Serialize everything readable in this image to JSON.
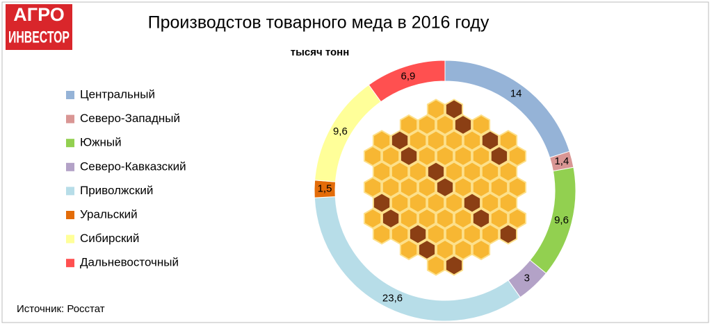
{
  "logo": {
    "line1": "АГРО",
    "line2": "ИНВЕСТОР"
  },
  "chart_data": {
    "type": "donut",
    "title": "Производстов товарного меда в 2016 году",
    "subtitle": "тысяч тонн",
    "categories": [
      "Центральный",
      "Северо-Западный",
      "Южный",
      "Северо-Кавказский",
      "Приволжский",
      "Уральский",
      "Сибирский",
      "Дальневосточный"
    ],
    "values": [
      14,
      1.4,
      9.6,
      3,
      23.6,
      1.5,
      9.6,
      6.9
    ],
    "value_labels": [
      "14",
      "1,4",
      "9,6",
      "3",
      "23,6",
      "1,5",
      "9,6",
      "6,9"
    ],
    "colors": [
      "#95b3d7",
      "#d99694",
      "#92d050",
      "#b3a2c7",
      "#b7dde8",
      "#e36c09",
      "#ffff99",
      "#ff5050"
    ],
    "legend": "left"
  },
  "source": "Источник: Росстат"
}
